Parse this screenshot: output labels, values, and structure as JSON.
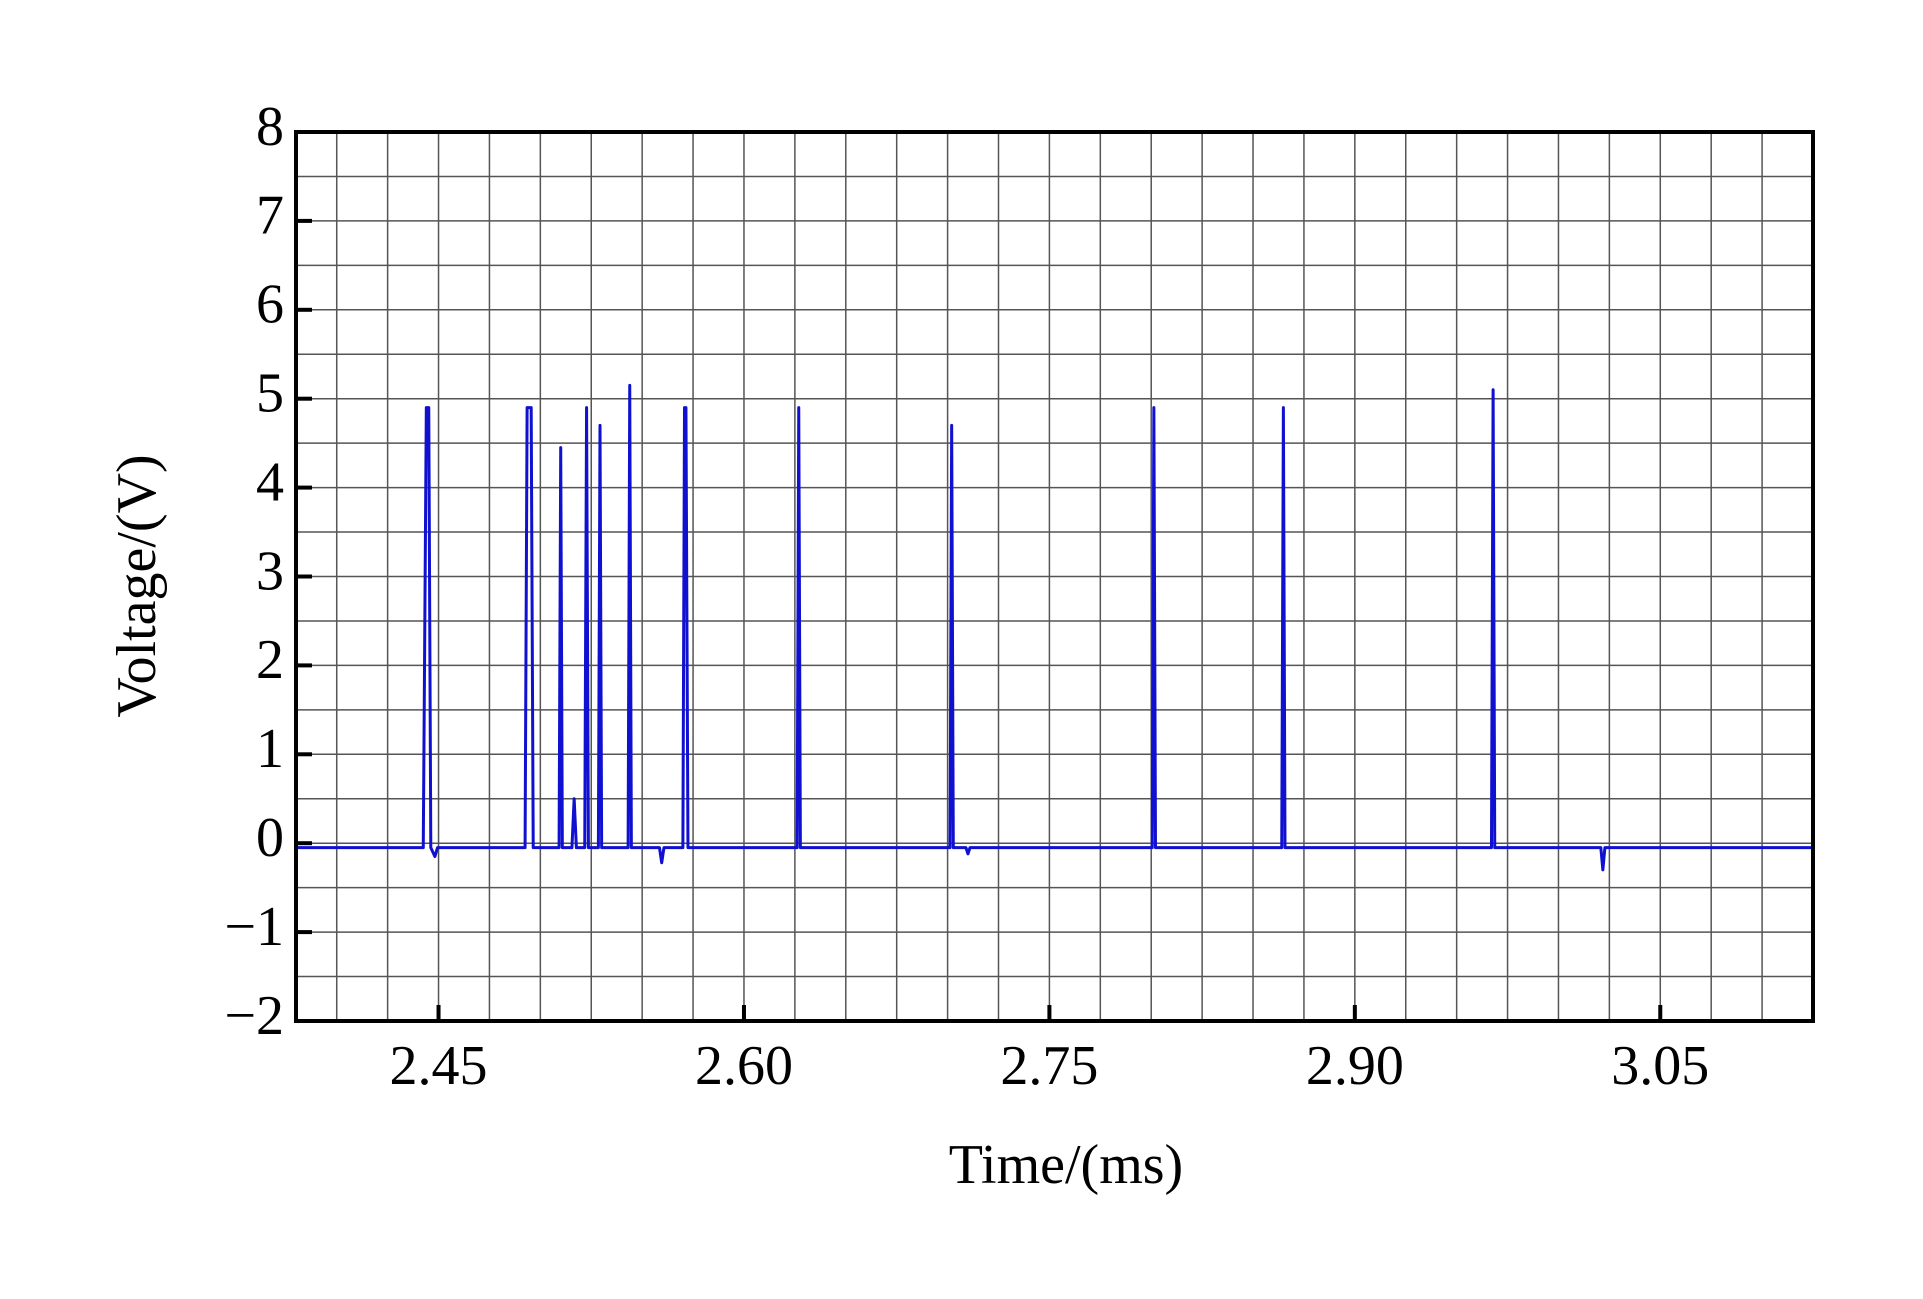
{
  "chart_data": {
    "type": "line",
    "xlabel": "Time/(ms)",
    "ylabel": "Voltage/(V)",
    "xlim": [
      2.38,
      3.125
    ],
    "ylim": [
      -2,
      8
    ],
    "xticks": [
      2.45,
      {
        "value": 2.6,
        "label": "2.60"
      },
      2.75,
      {
        "value": 2.9,
        "label": "2.90"
      },
      3.05
    ],
    "yticks": [
      {
        "value": -2,
        "label": "−2"
      },
      {
        "value": -1,
        "label": "−1"
      },
      0,
      1,
      2,
      3,
      4,
      5,
      6,
      7,
      8
    ],
    "xminorticks": [
      2.4,
      2.425,
      2.475,
      2.5,
      2.525,
      2.55,
      2.575,
      2.625,
      2.65,
      2.675,
      2.7,
      2.725,
      2.775,
      2.8,
      2.825,
      2.85,
      2.875,
      2.925,
      2.95,
      2.975,
      3.0,
      3.025,
      3.075,
      3.1
    ],
    "yminorticks": [
      -1.5,
      -0.5,
      0.5,
      1.5,
      2.5,
      3.5,
      4.5,
      5.5,
      6.5,
      7.5
    ],
    "grid": true,
    "series": [
      {
        "color": "#1010d0",
        "x": [
          2.38,
          2.4425,
          2.444,
          2.4452,
          2.4462,
          2.4482,
          2.4495,
          2.4925,
          2.4935,
          2.4955,
          2.4965,
          2.5092,
          2.51,
          2.5108,
          2.5155,
          2.5166,
          2.5177,
          2.5218,
          2.5227,
          2.5236,
          2.5285,
          2.5293,
          2.5301,
          2.5431,
          2.5439,
          2.5447,
          2.5585,
          2.5596,
          2.5607,
          2.57,
          2.5708,
          2.5715,
          2.5725,
          2.6261,
          2.6269,
          2.6277,
          2.7012,
          2.702,
          2.7028,
          2.709,
          2.71,
          2.711,
          2.8005,
          2.8013,
          2.8021,
          2.8641,
          2.8649,
          2.8657,
          2.9671,
          2.9679,
          2.9687,
          3.0208,
          3.0218,
          3.0228,
          3.125
        ],
        "values": [
          -0.05,
          -0.05,
          4.9,
          4.9,
          -0.05,
          -0.15,
          -0.05,
          -0.05,
          4.9,
          4.9,
          -0.05,
          -0.05,
          4.45,
          -0.05,
          -0.05,
          0.5,
          -0.05,
          -0.05,
          4.9,
          -0.05,
          -0.05,
          4.7,
          -0.05,
          -0.05,
          5.15,
          -0.05,
          -0.05,
          -0.22,
          -0.05,
          -0.05,
          4.9,
          4.9,
          -0.05,
          -0.05,
          4.9,
          -0.05,
          -0.05,
          4.7,
          -0.05,
          -0.05,
          -0.12,
          -0.05,
          -0.05,
          4.9,
          -0.05,
          -0.05,
          4.9,
          -0.05,
          -0.05,
          5.1,
          -0.05,
          -0.05,
          -0.3,
          -0.05,
          -0.05
        ]
      }
    ]
  }
}
